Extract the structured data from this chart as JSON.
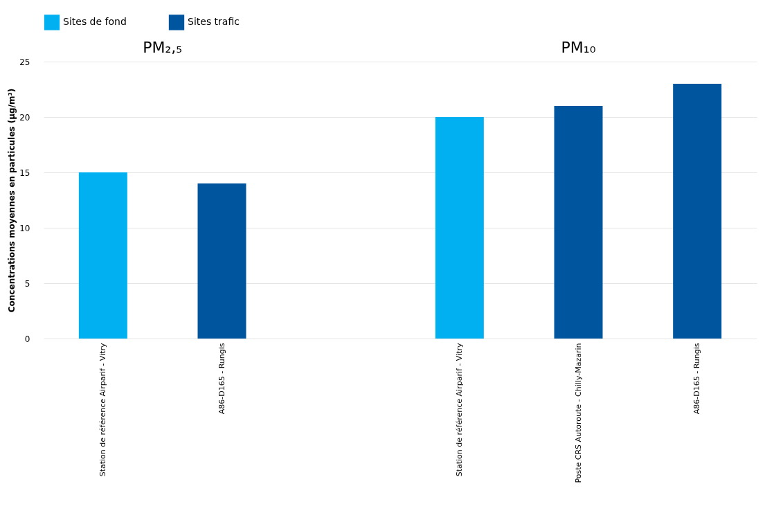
{
  "chart_data": {
    "type": "bar",
    "ylabel": "Concentrations moyennes en particules (µg/m³)",
    "categories": [
      "Station de référence Airparif - Vitry",
      "A86-D165 - Rungis",
      null,
      "Station de référence Airparif - Vitry",
      "Poste CRS Autoroute - Chilly-Mazarin",
      "A86-D165 - Rungis"
    ],
    "series": [
      {
        "name": "Sites de fond",
        "color": "#00b0f0",
        "values": [
          15,
          null,
          null,
          20,
          null,
          null
        ]
      },
      {
        "name": "Sites trafic",
        "color": "#00559f",
        "values": [
          null,
          14,
          null,
          null,
          21,
          23
        ]
      }
    ],
    "annotations": [
      "PM₂,₅",
      "PM₁₀"
    ],
    "ylim": [
      0,
      25
    ],
    "yticks": [
      0,
      5,
      10,
      15,
      20,
      25
    ],
    "grid": "y",
    "legend": "top"
  }
}
